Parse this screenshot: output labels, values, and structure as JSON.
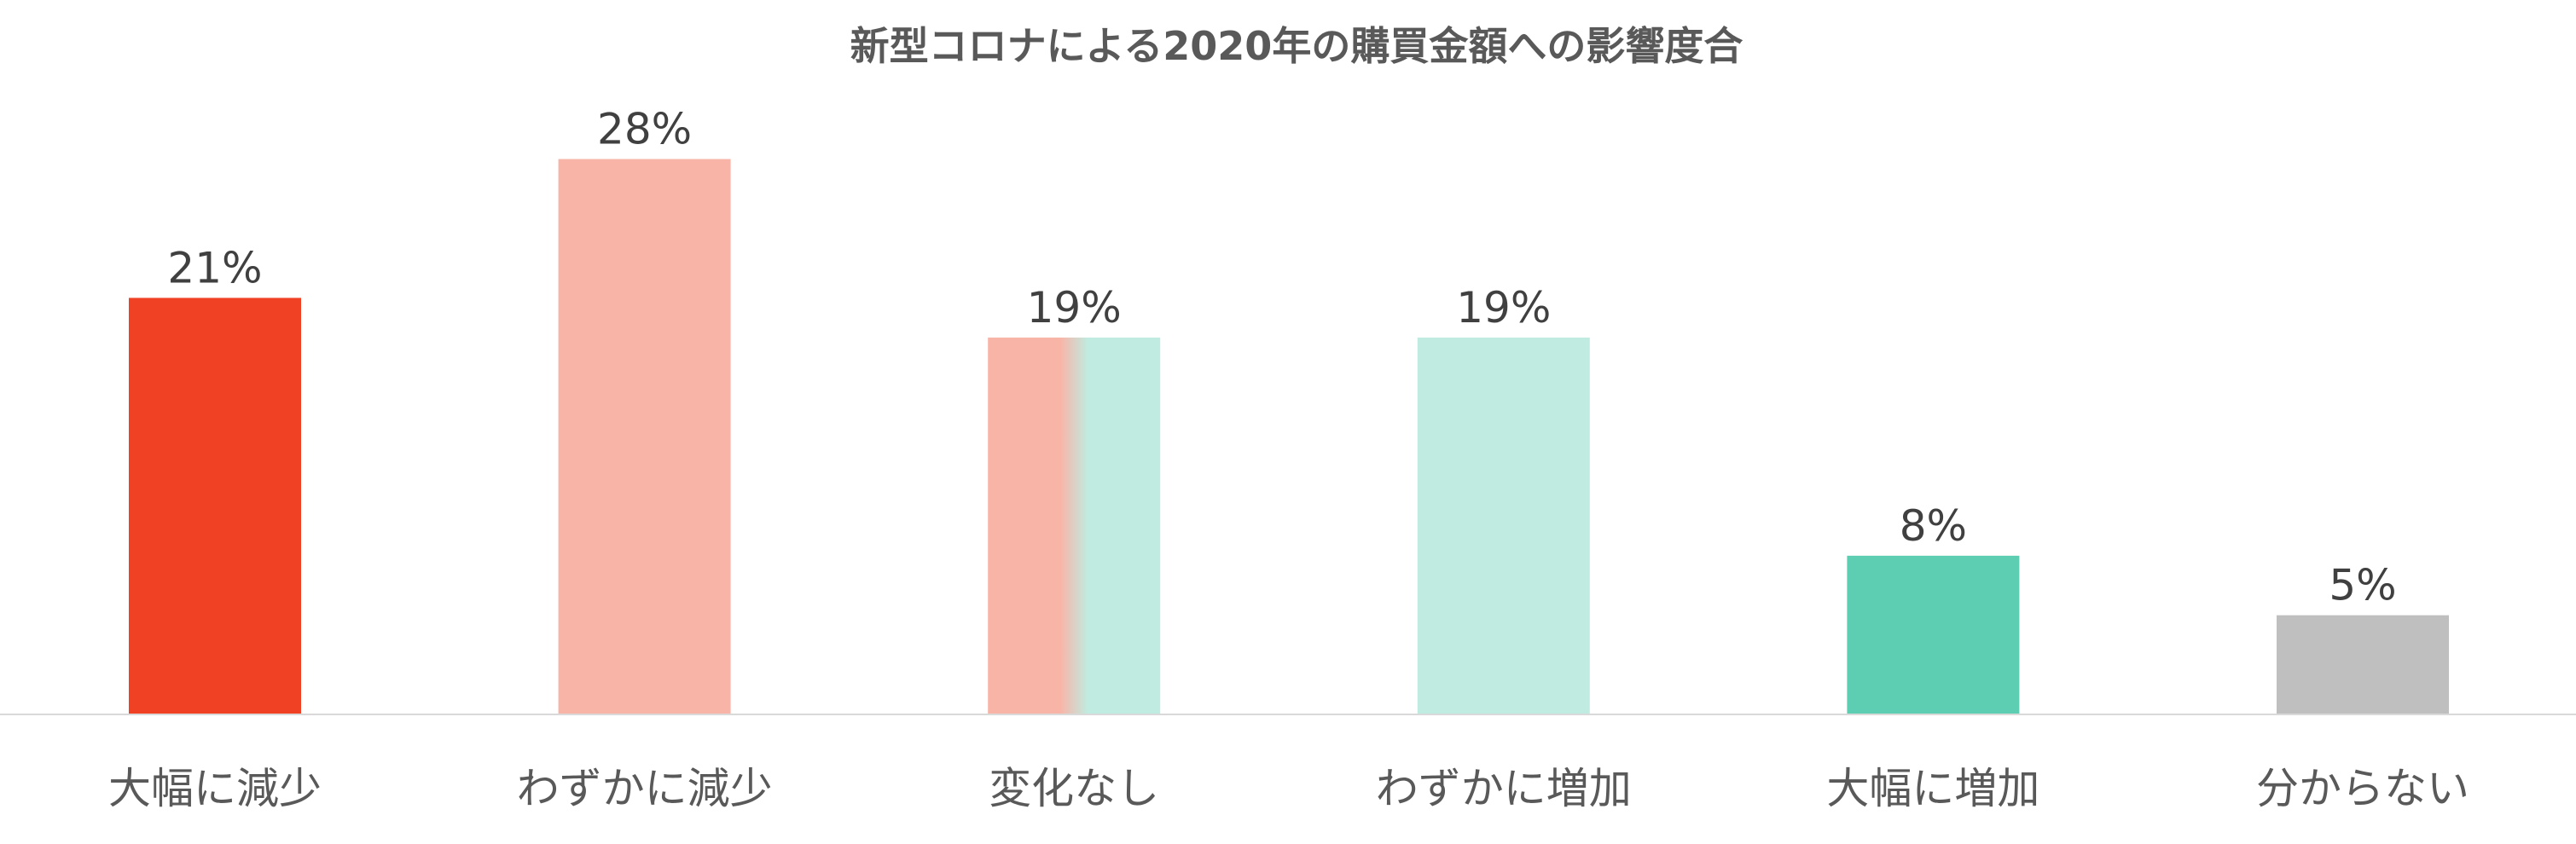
{
  "chart_data": {
    "type": "bar",
    "title": "新型コロナによる2020年の購買金額への影響度合",
    "xlabel": "",
    "ylabel": "",
    "categories": [
      "大幅に減少",
      "わずかに減少",
      "変化なし",
      "わずかに増加",
      "大幅に増加",
      "分からない"
    ],
    "values": [
      21,
      28,
      19,
      19,
      8,
      5
    ],
    "data_labels": [
      "21%",
      "28%",
      "19%",
      "19%",
      "8%",
      "5%"
    ],
    "value_unit": "%",
    "ylim": [
      0,
      30
    ],
    "grid": false,
    "legend": "none",
    "colors": [
      "#f04124",
      "#f9b4a8",
      "#f9b4a8|#c0ebe0",
      "#c0ebe0",
      "#5dceb1",
      "#bfbfbf"
    ]
  }
}
